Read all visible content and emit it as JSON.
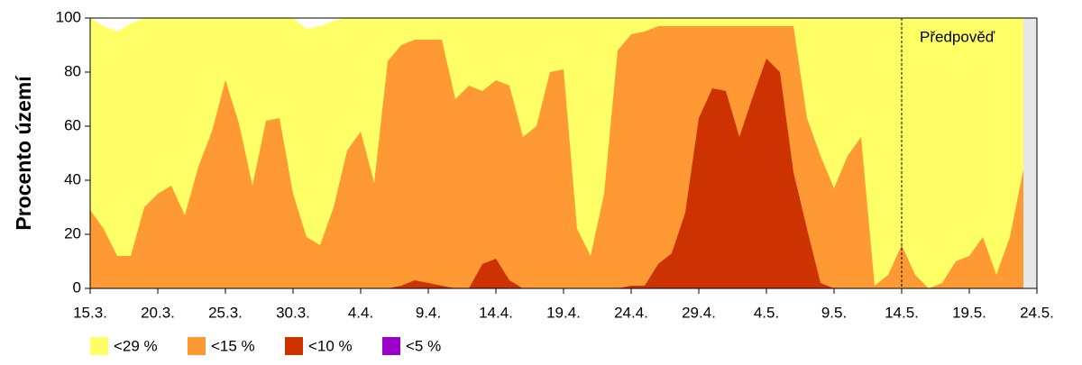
{
  "chart_data": {
    "type": "area",
    "ylabel": "Procento území",
    "annotation": "Předpověď",
    "annotation_category": 60,
    "categories": [
      "15.3.",
      null,
      null,
      null,
      null,
      "20.3.",
      null,
      null,
      null,
      null,
      "25.3.",
      null,
      null,
      null,
      null,
      "30.3.",
      null,
      null,
      null,
      null,
      "4.4.",
      null,
      null,
      null,
      null,
      "9.4.",
      null,
      null,
      null,
      null,
      "14.4.",
      null,
      null,
      null,
      null,
      "19.4.",
      null,
      null,
      null,
      null,
      "24.4.",
      null,
      null,
      null,
      null,
      "29.4.",
      null,
      null,
      null,
      null,
      "4.5.",
      null,
      null,
      null,
      null,
      "9.5.",
      null,
      null,
      null,
      null,
      "14.5.",
      null,
      null,
      null,
      null,
      "19.5.",
      null,
      null,
      null,
      null,
      "24.5."
    ],
    "ylim": [
      0,
      100
    ],
    "yticks": [
      0,
      20,
      40,
      60,
      80,
      100
    ],
    "legend": "bottom",
    "series": [
      {
        "name": "<29 %",
        "color": "#ffff66",
        "values": [
          100,
          97,
          95,
          98,
          100,
          100,
          100,
          100,
          100,
          100,
          100,
          100,
          100,
          100,
          100,
          100,
          96,
          97,
          99,
          100,
          100,
          100,
          100,
          100,
          100,
          100,
          100,
          100,
          100,
          100,
          100,
          100,
          100,
          100,
          100,
          100,
          100,
          100,
          100,
          100,
          100,
          100,
          100,
          100,
          100,
          100,
          100,
          100,
          100,
          100,
          100,
          100,
          100,
          100,
          100,
          100,
          100,
          100,
          100,
          100,
          100,
          100,
          100,
          100,
          100,
          100,
          100,
          100,
          100,
          100,
          null
        ]
      },
      {
        "name": "<15 %",
        "color": "#ff9933",
        "values": [
          29,
          22,
          12,
          12,
          30,
          35,
          38,
          27,
          45,
          58,
          77,
          61,
          38,
          62,
          63,
          35,
          19,
          16,
          30,
          51,
          58,
          39,
          84,
          90,
          92,
          92,
          92,
          70,
          75,
          73,
          77,
          75,
          56,
          60,
          80,
          81,
          22,
          12,
          35,
          88,
          94,
          95,
          97,
          97,
          97,
          97,
          97,
          97,
          97,
          97,
          97,
          97,
          97,
          63,
          49,
          37,
          49,
          56,
          1,
          5,
          16,
          5,
          0,
          2,
          10,
          12,
          19,
          5,
          19,
          44,
          null
        ]
      },
      {
        "name": "<10 %",
        "color": "#cc3300",
        "values": [
          0,
          0,
          0,
          0,
          0,
          0,
          0,
          0,
          0,
          0,
          0,
          0,
          0,
          0,
          0,
          0,
          0,
          0,
          0,
          0,
          0,
          0,
          0,
          1,
          3,
          2,
          1,
          0,
          0,
          9,
          11,
          3,
          0,
          0,
          0,
          0,
          0,
          0,
          0,
          0,
          1,
          1,
          9,
          13,
          28,
          63,
          74,
          73,
          56,
          71,
          85,
          80,
          43,
          22,
          2,
          0,
          0,
          0,
          0,
          0,
          0,
          0,
          0,
          0,
          0,
          0,
          0,
          0,
          0,
          0,
          null
        ]
      },
      {
        "name": "<5 %",
        "color": "#9900cc",
        "values": [
          0,
          0,
          0,
          0,
          0,
          0,
          0,
          0,
          0,
          0,
          0,
          0,
          0,
          0,
          0,
          0,
          0,
          0,
          0,
          0,
          0,
          0,
          0,
          0,
          0,
          0,
          0,
          0,
          0,
          0,
          0,
          0,
          0,
          0,
          0,
          0,
          0,
          0,
          0,
          0,
          0,
          0,
          0,
          0,
          0,
          0,
          0,
          0,
          0,
          0,
          0,
          0,
          0,
          0,
          0,
          0,
          0,
          0,
          0,
          0,
          0,
          0,
          0,
          0,
          0,
          0,
          0,
          0,
          0,
          0,
          null
        ]
      }
    ]
  }
}
